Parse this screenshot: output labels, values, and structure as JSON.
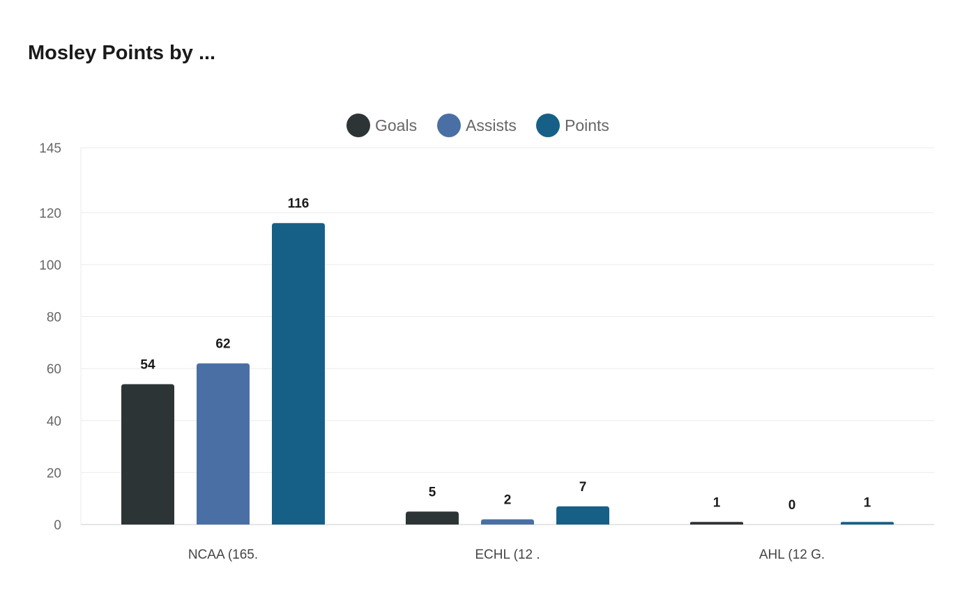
{
  "chart_data": {
    "type": "bar",
    "title": "Mosley Points by ...",
    "categories": [
      "NCAA (165.",
      "ECHL (12 .",
      "AHL (12 G."
    ],
    "series": [
      {
        "name": "Goals",
        "values": [
          54,
          5,
          1
        ],
        "color": "#2d3436"
      },
      {
        "name": "Assists",
        "values": [
          62,
          2,
          0
        ],
        "color": "#4a6fa5"
      },
      {
        "name": "Points",
        "values": [
          116,
          7,
          1
        ],
        "color": "#166088"
      }
    ],
    "yticks": [
      0,
      20,
      40,
      60,
      80,
      100,
      120,
      145
    ],
    "ylim": [
      0,
      145
    ],
    "grid": true,
    "legend": "top-center",
    "xlabel": "",
    "ylabel": ""
  }
}
